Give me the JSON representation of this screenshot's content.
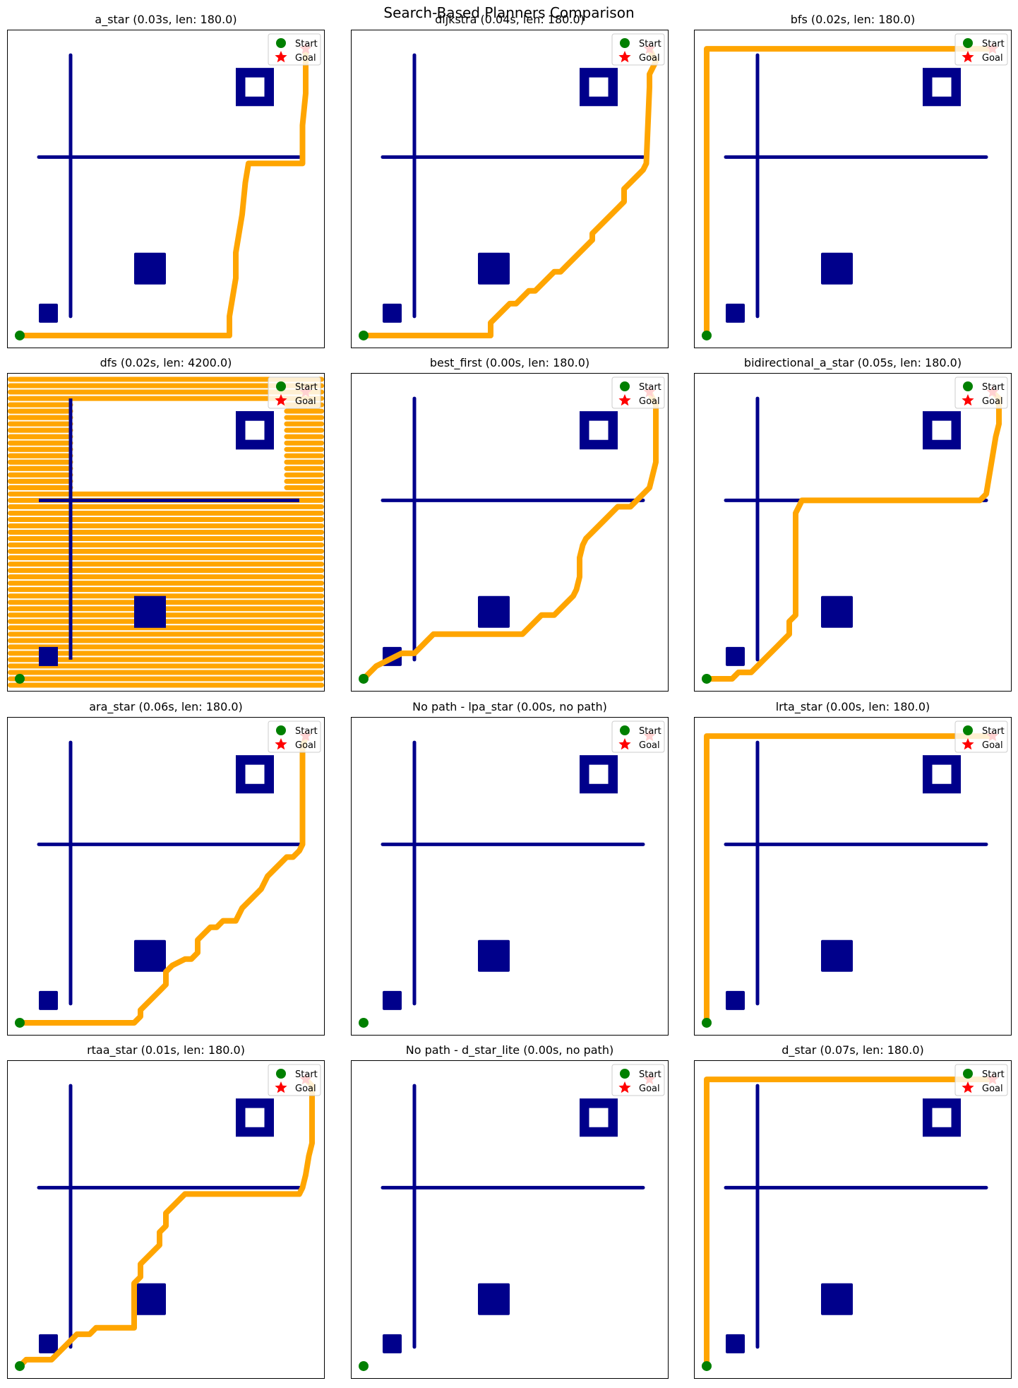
{
  "figure_title": "Search-Based Planners Comparison",
  "colors": {
    "obstacle": "#00008b",
    "path": "#ffa500",
    "start": "#008000",
    "goal": "#ff0000",
    "frame": "#000000"
  },
  "legend": {
    "start_label": "Start",
    "goal_label": "Goal",
    "placement": "top-right"
  },
  "chart_data": [
    {
      "type": "scatter",
      "title": "a_star (0.03s, len: 180.0)",
      "xlim": [
        0,
        50
      ],
      "ylim": [
        0,
        50
      ],
      "grid": false,
      "start": [
        2,
        2
      ],
      "goal": [
        47,
        47
      ],
      "path": [
        [
          2,
          2
        ],
        [
          35,
          2
        ],
        [
          35,
          5
        ],
        [
          35.5,
          8
        ],
        [
          36,
          11
        ],
        [
          36,
          15
        ],
        [
          36.5,
          18
        ],
        [
          37,
          21
        ],
        [
          37.5,
          26
        ],
        [
          38,
          29
        ],
        [
          46.5,
          29
        ],
        [
          46.5,
          35
        ],
        [
          47,
          40
        ],
        [
          47,
          47
        ]
      ]
    },
    {
      "type": "scatter",
      "title": "dijkstra (0.04s, len: 180.0)",
      "xlim": [
        0,
        50
      ],
      "ylim": [
        0,
        50
      ],
      "grid": false,
      "start": [
        2,
        2
      ],
      "goal": [
        47,
        47
      ],
      "path": [
        [
          2,
          2
        ],
        [
          22,
          2
        ],
        [
          22,
          3
        ],
        [
          22,
          4
        ],
        [
          23,
          5
        ],
        [
          24,
          6
        ],
        [
          25,
          7
        ],
        [
          26,
          7
        ],
        [
          27,
          8
        ],
        [
          28,
          9
        ],
        [
          29,
          9
        ],
        [
          30,
          10
        ],
        [
          31,
          11
        ],
        [
          32,
          12
        ],
        [
          33,
          12
        ],
        [
          34,
          13
        ],
        [
          35,
          14
        ],
        [
          36,
          15
        ],
        [
          37,
          16
        ],
        [
          38,
          17
        ],
        [
          38,
          18
        ],
        [
          39,
          19
        ],
        [
          40,
          20
        ],
        [
          41,
          21
        ],
        [
          42,
          22
        ],
        [
          43,
          23
        ],
        [
          43,
          25
        ],
        [
          44,
          26
        ],
        [
          45,
          27
        ],
        [
          46,
          28
        ],
        [
          46.5,
          29
        ],
        [
          47,
          41
        ],
        [
          47,
          43
        ],
        [
          47.5,
          44
        ],
        [
          48,
          45
        ],
        [
          47,
          47
        ]
      ]
    },
    {
      "type": "scatter",
      "title": "bfs (0.02s, len: 180.0)",
      "xlim": [
        0,
        50
      ],
      "ylim": [
        0,
        50
      ],
      "grid": false,
      "start": [
        2,
        2
      ],
      "goal": [
        47,
        47
      ],
      "path": [
        [
          2,
          2
        ],
        [
          2,
          47
        ],
        [
          47,
          47
        ]
      ]
    },
    {
      "type": "scatter",
      "title": "dfs (0.02s, len: 4200.0)",
      "xlim": [
        0,
        50
      ],
      "ylim": [
        0,
        50
      ],
      "grid": false,
      "start": [
        2,
        2
      ],
      "goal": [
        47,
        47
      ],
      "path": [],
      "dense_fill": true
    },
    {
      "type": "scatter",
      "title": "best_first (0.00s, len: 180.0)",
      "xlim": [
        0,
        50
      ],
      "ylim": [
        0,
        50
      ],
      "grid": false,
      "start": [
        2,
        2
      ],
      "goal": [
        47,
        47
      ],
      "path": [
        [
          2,
          2
        ],
        [
          3,
          3
        ],
        [
          4,
          4
        ],
        [
          6,
          5
        ],
        [
          8,
          6
        ],
        [
          10,
          6
        ],
        [
          11,
          7
        ],
        [
          12,
          8
        ],
        [
          13,
          9
        ],
        [
          27,
          9
        ],
        [
          28,
          10
        ],
        [
          29,
          11
        ],
        [
          30,
          12
        ],
        [
          32,
          12
        ],
        [
          33,
          13
        ],
        [
          34,
          14
        ],
        [
          35,
          15
        ],
        [
          35.5,
          16
        ],
        [
          36,
          18
        ],
        [
          36,
          21
        ],
        [
          36.5,
          23
        ],
        [
          37,
          24
        ],
        [
          38,
          25
        ],
        [
          39,
          26
        ],
        [
          40,
          27
        ],
        [
          41,
          28
        ],
        [
          42,
          29
        ],
        [
          44,
          29
        ],
        [
          45,
          30
        ],
        [
          46,
          31
        ],
        [
          47,
          32
        ],
        [
          47.5,
          34
        ],
        [
          48,
          36
        ],
        [
          48,
          40
        ],
        [
          48,
          45
        ],
        [
          47,
          47
        ]
      ]
    },
    {
      "type": "scatter",
      "title": "bidirectional_a_star (0.05s, len: 180.0)",
      "xlim": [
        0,
        50
      ],
      "ylim": [
        0,
        50
      ],
      "grid": false,
      "start": [
        2,
        2
      ],
      "goal": [
        47,
        47
      ],
      "path": [
        [
          2,
          2
        ],
        [
          6,
          2
        ],
        [
          7,
          3
        ],
        [
          9,
          3
        ],
        [
          10,
          4
        ],
        [
          11,
          5
        ],
        [
          12,
          6
        ],
        [
          13,
          7
        ],
        [
          14,
          8
        ],
        [
          15,
          9
        ],
        [
          15,
          11
        ],
        [
          16,
          12
        ],
        [
          16,
          14
        ],
        [
          16,
          18
        ],
        [
          16,
          23
        ],
        [
          16,
          28
        ],
        [
          16.5,
          29
        ],
        [
          17,
          30
        ],
        [
          45,
          30
        ],
        [
          46,
          31
        ],
        [
          46.5,
          34
        ],
        [
          47,
          37
        ],
        [
          47.5,
          40
        ],
        [
          48,
          42
        ],
        [
          48,
          46
        ],
        [
          47,
          47
        ]
      ]
    },
    {
      "type": "scatter",
      "title": "ara_star (0.06s, len: 180.0)",
      "xlim": [
        0,
        50
      ],
      "ylim": [
        0,
        50
      ],
      "grid": false,
      "start": [
        2,
        2
      ],
      "goal": [
        47,
        47
      ],
      "path": [
        [
          2,
          2
        ],
        [
          20,
          2
        ],
        [
          21,
          3
        ],
        [
          21,
          4
        ],
        [
          22,
          5
        ],
        [
          23,
          6
        ],
        [
          24,
          7
        ],
        [
          25,
          8
        ],
        [
          25,
          10
        ],
        [
          26,
          11
        ],
        [
          28,
          12
        ],
        [
          29,
          12
        ],
        [
          30,
          13
        ],
        [
          30,
          15
        ],
        [
          31,
          16
        ],
        [
          32,
          17
        ],
        [
          33,
          17
        ],
        [
          34,
          18
        ],
        [
          36,
          18
        ],
        [
          36.5,
          19
        ],
        [
          37,
          20
        ],
        [
          38,
          21
        ],
        [
          39,
          22
        ],
        [
          40,
          23
        ],
        [
          40.5,
          24
        ],
        [
          41,
          25
        ],
        [
          42,
          26
        ],
        [
          43,
          27
        ],
        [
          44,
          28
        ],
        [
          45,
          28
        ],
        [
          46,
          29
        ],
        [
          46.5,
          30
        ],
        [
          46.5,
          45
        ],
        [
          47,
          47
        ]
      ]
    },
    {
      "type": "scatter",
      "title": "No path - lpa_star (0.00s, no path)",
      "xlim": [
        0,
        50
      ],
      "ylim": [
        0,
        50
      ],
      "grid": false,
      "start": [
        2,
        2
      ],
      "goal": [
        47,
        47
      ],
      "path": []
    },
    {
      "type": "scatter",
      "title": "lrta_star (0.00s, len: 180.0)",
      "xlim": [
        0,
        50
      ],
      "ylim": [
        0,
        50
      ],
      "grid": false,
      "start": [
        2,
        2
      ],
      "goal": [
        47,
        47
      ],
      "path": [
        [
          2,
          2
        ],
        [
          2,
          47
        ],
        [
          47,
          47
        ]
      ]
    },
    {
      "type": "scatter",
      "title": "rtaa_star (0.01s, len: 180.0)",
      "xlim": [
        0,
        50
      ],
      "ylim": [
        0,
        50
      ],
      "grid": false,
      "start": [
        2,
        2
      ],
      "goal": [
        47,
        47
      ],
      "path": [
        [
          2,
          2
        ],
        [
          3,
          3
        ],
        [
          7,
          3
        ],
        [
          8,
          4
        ],
        [
          9,
          5
        ],
        [
          10,
          6
        ],
        [
          11,
          7
        ],
        [
          13,
          7
        ],
        [
          14,
          8
        ],
        [
          20,
          8
        ],
        [
          20,
          12
        ],
        [
          20,
          15
        ],
        [
          21,
          16
        ],
        [
          21,
          18
        ],
        [
          22,
          19
        ],
        [
          23,
          20
        ],
        [
          24,
          21
        ],
        [
          24,
          23
        ],
        [
          25,
          24
        ],
        [
          25,
          26
        ],
        [
          26,
          27
        ],
        [
          27,
          28
        ],
        [
          28,
          29
        ],
        [
          46,
          29
        ],
        [
          46.5,
          30
        ],
        [
          47,
          32
        ],
        [
          47.5,
          35
        ],
        [
          48,
          37
        ],
        [
          48,
          42
        ],
        [
          48,
          46
        ],
        [
          47,
          47
        ]
      ]
    },
    {
      "type": "scatter",
      "title": "No path - d_star_lite (0.00s, no path)",
      "xlim": [
        0,
        50
      ],
      "ylim": [
        0,
        50
      ],
      "grid": false,
      "start": [
        2,
        2
      ],
      "goal": [
        47,
        47
      ],
      "path": []
    },
    {
      "type": "scatter",
      "title": "d_star (0.07s, len: 180.0)",
      "xlim": [
        0,
        50
      ],
      "ylim": [
        0,
        50
      ],
      "grid": false,
      "start": [
        2,
        2
      ],
      "goal": [
        47,
        47
      ],
      "path": [
        [
          2,
          2
        ],
        [
          2,
          47
        ],
        [
          47,
          47
        ]
      ]
    }
  ]
}
